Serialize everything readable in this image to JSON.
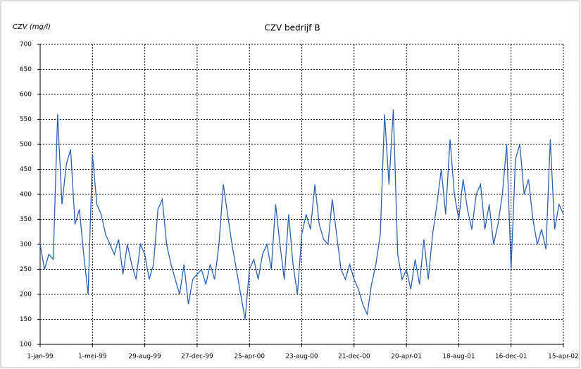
{
  "chart_data": {
    "type": "line",
    "title": "CZV bedrijf B",
    "y_label": "CZV (mg/l)",
    "x": [
      "1999-01-01",
      "1999-01-11",
      "1999-01-21",
      "1999-01-31",
      "1999-02-10",
      "1999-02-20",
      "1999-03-02",
      "1999-03-12",
      "1999-03-22",
      "1999-04-01",
      "1999-04-11",
      "1999-04-21",
      "1999-05-01",
      "1999-05-11",
      "1999-05-21",
      "1999-05-31",
      "1999-06-10",
      "1999-06-20",
      "1999-06-30",
      "1999-07-10",
      "1999-07-20",
      "1999-07-30",
      "1999-08-09",
      "1999-08-19",
      "1999-08-29",
      "1999-09-08",
      "1999-09-18",
      "1999-09-28",
      "1999-10-08",
      "1999-10-18",
      "1999-10-28",
      "1999-11-07",
      "1999-11-17",
      "1999-11-27",
      "1999-12-07",
      "1999-12-17",
      "1999-12-27",
      "2000-01-06",
      "2000-01-16",
      "2000-01-26",
      "2000-02-05",
      "2000-02-15",
      "2000-02-25",
      "2000-03-06",
      "2000-03-16",
      "2000-03-26",
      "2000-04-05",
      "2000-04-15",
      "2000-04-25",
      "2000-05-05",
      "2000-05-15",
      "2000-05-25",
      "2000-06-04",
      "2000-06-14",
      "2000-06-24",
      "2000-07-04",
      "2000-07-14",
      "2000-07-24",
      "2000-08-03",
      "2000-08-13",
      "2000-08-23",
      "2000-09-02",
      "2000-09-12",
      "2000-09-22",
      "2000-10-02",
      "2000-10-12",
      "2000-10-22",
      "2000-11-01",
      "2000-11-11",
      "2000-11-21",
      "2000-12-01",
      "2000-12-11",
      "2000-12-21",
      "2000-12-31",
      "2001-01-10",
      "2001-01-20",
      "2001-01-30",
      "2001-02-09",
      "2001-02-19",
      "2001-03-01",
      "2001-03-11",
      "2001-03-21",
      "2001-03-31",
      "2001-04-10",
      "2001-04-20",
      "2001-04-30",
      "2001-05-10",
      "2001-05-20",
      "2001-05-30",
      "2001-06-09",
      "2001-06-19",
      "2001-06-29",
      "2001-07-09",
      "2001-07-19",
      "2001-07-29",
      "2001-08-08",
      "2001-08-18",
      "2001-08-28",
      "2001-09-07",
      "2001-09-17",
      "2001-09-27",
      "2001-10-07",
      "2001-10-17",
      "2001-10-27",
      "2001-11-06",
      "2001-11-16",
      "2001-11-26",
      "2001-12-06",
      "2001-12-16",
      "2001-12-26",
      "2002-01-05",
      "2002-01-15",
      "2002-01-25",
      "2002-02-04",
      "2002-02-14",
      "2002-02-24",
      "2002-03-06",
      "2002-03-16",
      "2002-03-26",
      "2002-04-05",
      "2002-04-15"
    ],
    "series": [
      {
        "name": "CZV",
        "color": "#2a62b4",
        "values": [
          300,
          250,
          280,
          270,
          560,
          380,
          460,
          490,
          340,
          370,
          280,
          200,
          480,
          380,
          360,
          320,
          300,
          280,
          310,
          240,
          300,
          260,
          230,
          300,
          280,
          230,
          260,
          370,
          390,
          300,
          260,
          230,
          200,
          260,
          180,
          230,
          240,
          250,
          220,
          260,
          230,
          300,
          420,
          360,
          300,
          250,
          200,
          150,
          250,
          270,
          230,
          280,
          300,
          250,
          380,
          300,
          230,
          360,
          260,
          200,
          320,
          360,
          330,
          420,
          340,
          310,
          300,
          390,
          320,
          250,
          230,
          260,
          230,
          210,
          180,
          160,
          220,
          260,
          320,
          560,
          420,
          570,
          280,
          230,
          250,
          210,
          270,
          220,
          310,
          230,
          320,
          380,
          450,
          360,
          510,
          400,
          350,
          430,
          370,
          330,
          400,
          420,
          330,
          380,
          300,
          340,
          400,
          500,
          250,
          470,
          500,
          400,
          430,
          350,
          300,
          330,
          290,
          510,
          330,
          380,
          360
        ]
      }
    ],
    "xlim": [
      "1999-01-01",
      "2002-04-15"
    ],
    "xticks": [
      {
        "value": "1999-01-01",
        "label": "1-jan-99"
      },
      {
        "value": "1999-05-01",
        "label": "1-mei-99"
      },
      {
        "value": "1999-08-29",
        "label": "29-aug-99"
      },
      {
        "value": "1999-12-27",
        "label": "27-dec-99"
      },
      {
        "value": "2000-04-25",
        "label": "25-apr-00"
      },
      {
        "value": "2000-08-23",
        "label": "23-aug-00"
      },
      {
        "value": "2000-12-21",
        "label": "21-dec-00"
      },
      {
        "value": "2001-04-20",
        "label": "20-apr-01"
      },
      {
        "value": "2001-08-18",
        "label": "18-aug-01"
      },
      {
        "value": "2001-12-16",
        "label": "16-dec-01"
      },
      {
        "value": "2002-04-15",
        "label": "15-apr-02"
      }
    ],
    "ylim": [
      100,
      700
    ],
    "yticks": [
      100,
      150,
      200,
      250,
      300,
      350,
      400,
      450,
      500,
      550,
      600,
      650,
      700
    ],
    "grid": true
  }
}
